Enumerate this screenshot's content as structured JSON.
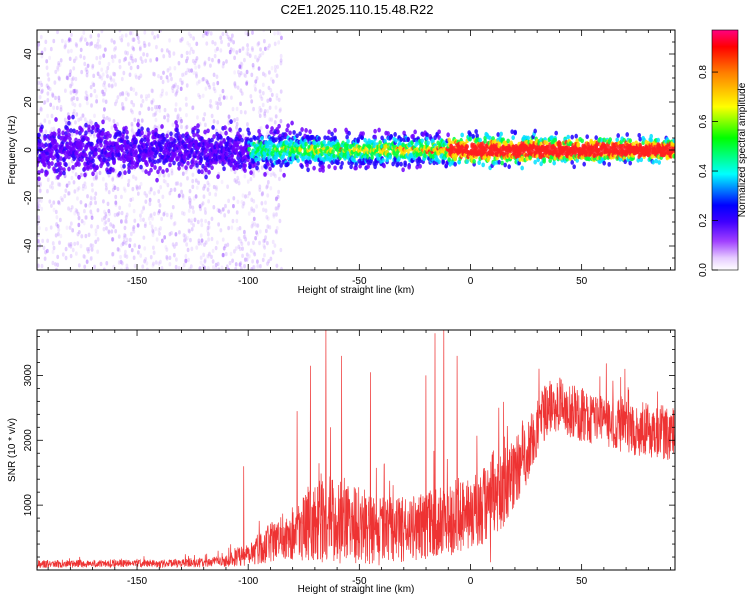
{
  "title": "C2E1.2025.110.15.48.R22",
  "chart_data": [
    {
      "type": "heatmap",
      "xlabel": "Height of straight line (km)",
      "ylabel": "Frequency (Hz)",
      "xlim": [
        -195,
        92
      ],
      "ylim": [
        -50,
        50
      ],
      "xticks": [
        -150,
        -100,
        -50,
        0,
        50
      ],
      "yticks": [
        -40,
        -20,
        0,
        20,
        40
      ],
      "grid": false,
      "colorbar": {
        "label": "Normalized spectral amplitude",
        "range": [
          0.0,
          0.97
        ],
        "ticks": [
          0.0,
          0.2,
          0.4,
          0.6,
          0.8
        ],
        "colors": [
          "#ffffff",
          "#cc99ff",
          "#7f00ff",
          "#0000ff",
          "#00ffff",
          "#00ff00",
          "#ffff00",
          "#ff8000",
          "#ff0000",
          "#ff00aa"
        ]
      },
      "features": {
        "noise_region_x": [
          -195,
          -105
        ],
        "noise_region_y": [
          -50,
          50
        ],
        "central_band_x": [
          -195,
          92
        ],
        "central_band_half_width_hz_start": 7,
        "central_band_half_width_hz_end": 3,
        "bright_band_x": [
          -10,
          92
        ],
        "bright_band_center_hz": 1
      }
    },
    {
      "type": "line",
      "xlabel": "Height of straight line (km)",
      "ylabel": "SNR (10 * v/v)",
      "xlim": [
        -195,
        92
      ],
      "ylim": [
        0,
        3700
      ],
      "xticks": [
        -150,
        -100,
        -50,
        0,
        50
      ],
      "yticks": [
        1000,
        2000,
        3000
      ],
      "grid": false,
      "color": "#ee3333",
      "x": [
        -195,
        -180,
        -160,
        -140,
        -120,
        -110,
        -100,
        -90,
        -80,
        -70,
        -60,
        -50,
        -40,
        -30,
        -20,
        -10,
        0,
        8,
        10,
        15,
        20,
        25,
        30,
        35,
        40,
        45,
        50,
        60,
        70,
        80,
        92
      ],
      "y": [
        90,
        95,
        100,
        100,
        110,
        140,
        260,
        420,
        580,
        720,
        800,
        700,
        580,
        620,
        680,
        780,
        900,
        1000,
        1150,
        1300,
        1500,
        1800,
        2200,
        2500,
        2550,
        2450,
        2400,
        2300,
        2200,
        2150,
        2100
      ],
      "noise_amp": [
        60,
        60,
        60,
        60,
        70,
        90,
        200,
        300,
        420,
        600,
        700,
        600,
        520,
        520,
        520,
        560,
        620,
        650,
        700,
        620,
        560,
        520,
        460,
        420,
        420,
        420,
        420,
        420,
        420,
        420,
        420
      ],
      "spikes": [
        {
          "x": -65,
          "y": 3700
        },
        {
          "x": -72,
          "y": 3150
        },
        {
          "x": -78,
          "y": 2450
        },
        {
          "x": -58,
          "y": 3300
        },
        {
          "x": -45,
          "y": 3050
        },
        {
          "x": -16,
          "y": 3650
        },
        {
          "x": -12,
          "y": 3700
        },
        {
          "x": -6,
          "y": 3300
        },
        {
          "x": -20,
          "y": 3000
        },
        {
          "x": -102,
          "y": 1600
        }
      ],
      "dips": [
        {
          "x": 9,
          "y": 120
        }
      ]
    }
  ]
}
